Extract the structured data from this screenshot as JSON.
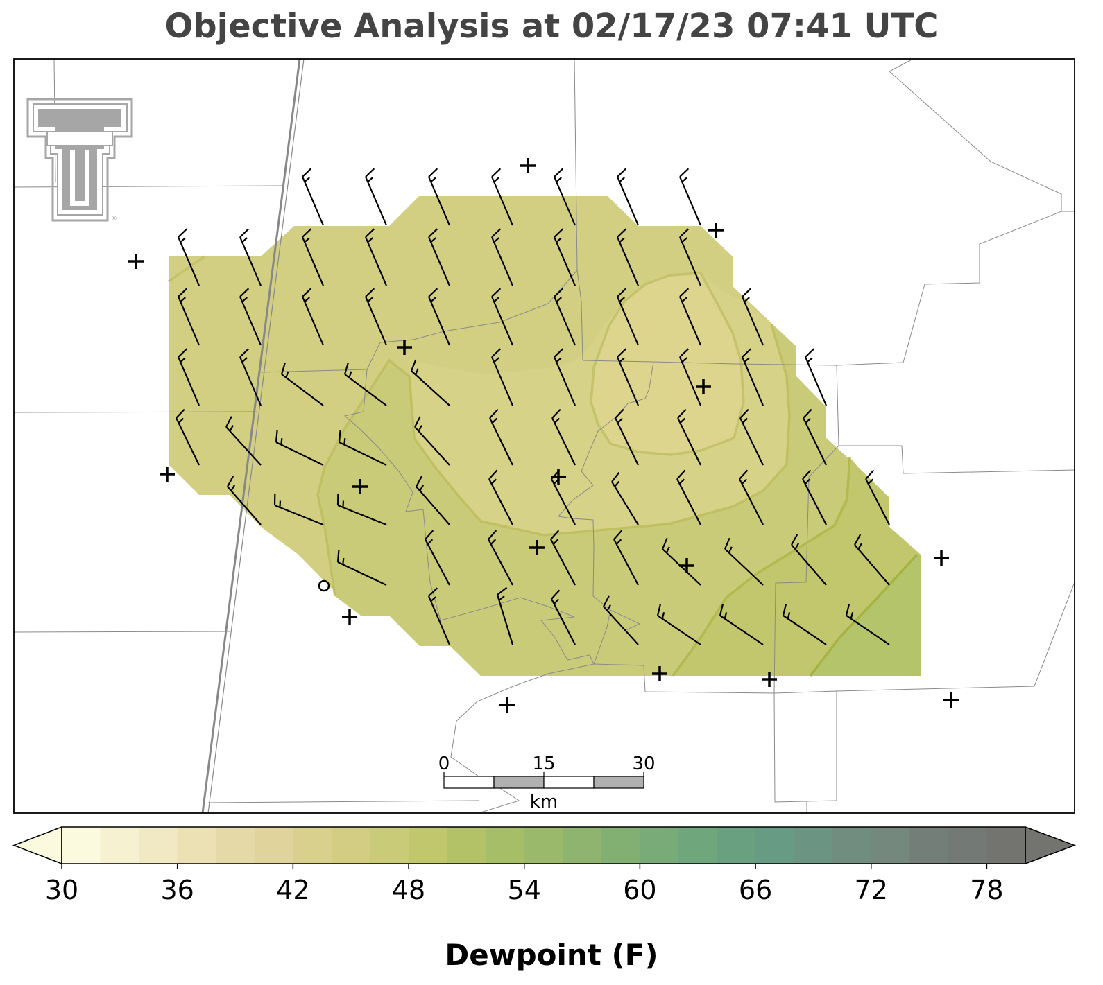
{
  "title": "Objective Analysis at 02/17/23 07:41 UTC",
  "colorbar": {
    "label": "Dewpoint (F)",
    "ticks": [
      "30",
      "36",
      "42",
      "48",
      "54",
      "60",
      "66",
      "72",
      "78"
    ],
    "min": 30,
    "max": 80,
    "step": 2,
    "colors": [
      "#fbf9de",
      "#f6f1d1",
      "#f1e9c3",
      "#ebe1b5",
      "#e5d9a7",
      "#e0d39c",
      "#d9d08e",
      "#d2cd82",
      "#cacb78",
      "#c1c76d",
      "#b3c266",
      "#a7be68",
      "#9ab96b",
      "#8eb46f",
      "#82b073",
      "#78ab78",
      "#70a67c",
      "#69a080",
      "#689b84",
      "#6b9482",
      "#718d80",
      "#74887d",
      "#737e78",
      "#737974",
      "#737470"
    ],
    "extend": "both"
  },
  "scale_bar": {
    "labels": [
      "0",
      "15",
      "30"
    ],
    "unit": "km"
  },
  "logo": {
    "icon": "texas-tech-double-t-logo"
  },
  "field": {
    "variable": "Dewpoint",
    "units": "F",
    "contour_levels": [
      44,
      46,
      48,
      50
    ],
    "regions": [
      {
        "name": "core",
        "value_range": [
          40,
          42
        ],
        "color": "#ddd48e"
      },
      {
        "name": "inner",
        "value_range": [
          42,
          44
        ],
        "color": "#d5d084"
      },
      {
        "name": "main",
        "value_range": [
          44,
          46
        ],
        "color": "#d2cf82"
      },
      {
        "name": "south",
        "value_range": [
          46,
          48
        ],
        "color": "#c9cb78"
      },
      {
        "name": "southeast",
        "value_range": [
          48,
          50
        ],
        "color": "#c2c76e"
      },
      {
        "name": "far-southeast",
        "value_range": [
          50,
          52
        ],
        "color": "#b3c46a"
      }
    ]
  },
  "stations": {
    "observed_marker": "+",
    "calm_marker": "o"
  }
}
